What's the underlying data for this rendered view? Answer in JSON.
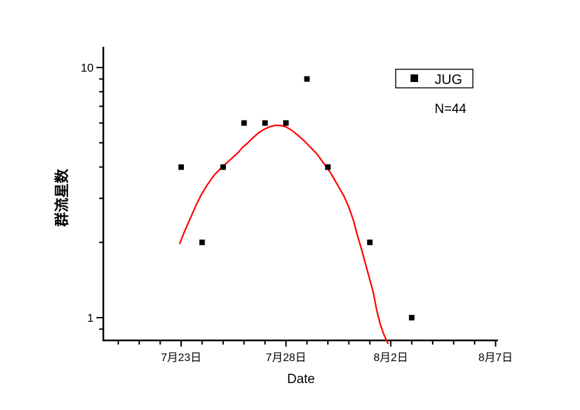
{
  "page": {
    "background_color": "#ffffff"
  },
  "chart_data": {
    "type": "scatter",
    "title": "",
    "xlabel": "Date",
    "ylabel": "群流星数",
    "y_scale": "log",
    "ylim": [
      0.8,
      12
    ],
    "grid": false,
    "legend": {
      "position": "top-right",
      "label": "JUG",
      "marker": "filled-square"
    },
    "annotation": "N=44",
    "colors": {
      "axis": "#000000",
      "marker": "#000000",
      "curve": "#ff0000",
      "legend_border": "#000000",
      "background": "#ffffff"
    },
    "x_axis": {
      "unit": "date",
      "major_ticks": [
        {
          "day": 0,
          "label": "7月23日"
        },
        {
          "day": 5,
          "label": "7月28日"
        },
        {
          "day": 10,
          "label": "8月2日"
        },
        {
          "day": 15,
          "label": "8月7日"
        }
      ],
      "minor_tick_days": [
        -3,
        -2,
        -1,
        1,
        2,
        3,
        4,
        6,
        7,
        8,
        9,
        11,
        12,
        13,
        14
      ]
    },
    "y_axis": {
      "major_ticks": [
        {
          "value": 1,
          "label": "1"
        },
        {
          "value": 10,
          "label": "10"
        }
      ],
      "minor_tick_values": [
        0.9,
        2,
        3,
        4,
        5,
        6,
        7,
        8,
        9
      ]
    },
    "series": [
      {
        "name": "JUG",
        "type": "scatter",
        "marker": "square",
        "color": "#000000",
        "points": [
          {
            "date": "7月23日",
            "day": 0,
            "count": 4
          },
          {
            "date": "7月24日",
            "day": 1,
            "count": 2
          },
          {
            "date": "7月25日",
            "day": 2,
            "count": 4
          },
          {
            "date": "7月26日",
            "day": 3,
            "count": 6
          },
          {
            "date": "7月27日",
            "day": 4,
            "count": 6
          },
          {
            "date": "7月28日",
            "day": 5,
            "count": 6
          },
          {
            "date": "7月29日",
            "day": 6,
            "count": 9
          },
          {
            "date": "7月30日",
            "day": 7,
            "count": 4
          },
          {
            "date": "8月1日",
            "day": 9,
            "count": 2
          },
          {
            "date": "8月3日",
            "day": 11,
            "count": 1
          }
        ],
        "total_n": 44
      },
      {
        "name": "fit-curve",
        "type": "line",
        "color": "#ff0000",
        "samples": [
          [
            -0.07,
            1.98
          ],
          [
            0.16,
            2.21
          ],
          [
            0.43,
            2.49
          ],
          [
            0.69,
            2.79
          ],
          [
            0.95,
            3.09
          ],
          [
            1.25,
            3.4
          ],
          [
            1.58,
            3.72
          ],
          [
            1.94,
            3.99
          ],
          [
            2.33,
            4.27
          ],
          [
            2.73,
            4.58
          ],
          [
            2.92,
            4.79
          ],
          [
            3.16,
            4.98
          ],
          [
            3.42,
            5.24
          ],
          [
            3.68,
            5.47
          ],
          [
            3.94,
            5.65
          ],
          [
            4.21,
            5.79
          ],
          [
            4.47,
            5.87
          ],
          [
            4.73,
            5.87
          ],
          [
            5.0,
            5.79
          ],
          [
            5.26,
            5.62
          ],
          [
            5.52,
            5.4
          ],
          [
            5.82,
            5.14
          ],
          [
            6.15,
            4.82
          ],
          [
            6.47,
            4.52
          ],
          [
            6.8,
            4.14
          ],
          [
            7.13,
            3.79
          ],
          [
            7.49,
            3.36
          ],
          [
            7.76,
            3.07
          ],
          [
            7.99,
            2.78
          ],
          [
            8.22,
            2.45
          ],
          [
            8.41,
            2.13
          ],
          [
            8.61,
            1.87
          ],
          [
            8.81,
            1.62
          ],
          [
            9.01,
            1.41
          ],
          [
            9.17,
            1.26
          ],
          [
            9.33,
            1.07
          ],
          [
            9.5,
            0.94
          ],
          [
            9.66,
            0.86
          ],
          [
            9.86,
            0.79
          ]
        ]
      }
    ]
  }
}
